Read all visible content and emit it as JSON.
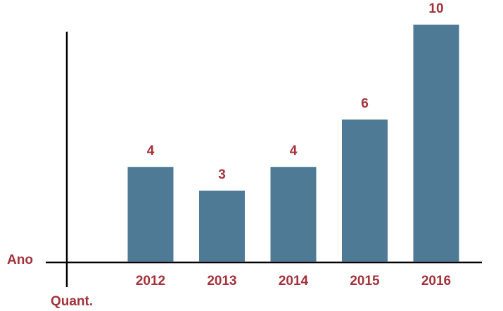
{
  "chart_data": {
    "type": "bar",
    "categories": [
      "2012",
      "2013",
      "2014",
      "2015",
      "2016"
    ],
    "values": [
      4,
      3,
      4,
      6,
      10
    ],
    "color": "#4e7a96",
    "ylim": [
      0,
      10
    ],
    "x_label": "Ano",
    "y_label": "Quant."
  }
}
